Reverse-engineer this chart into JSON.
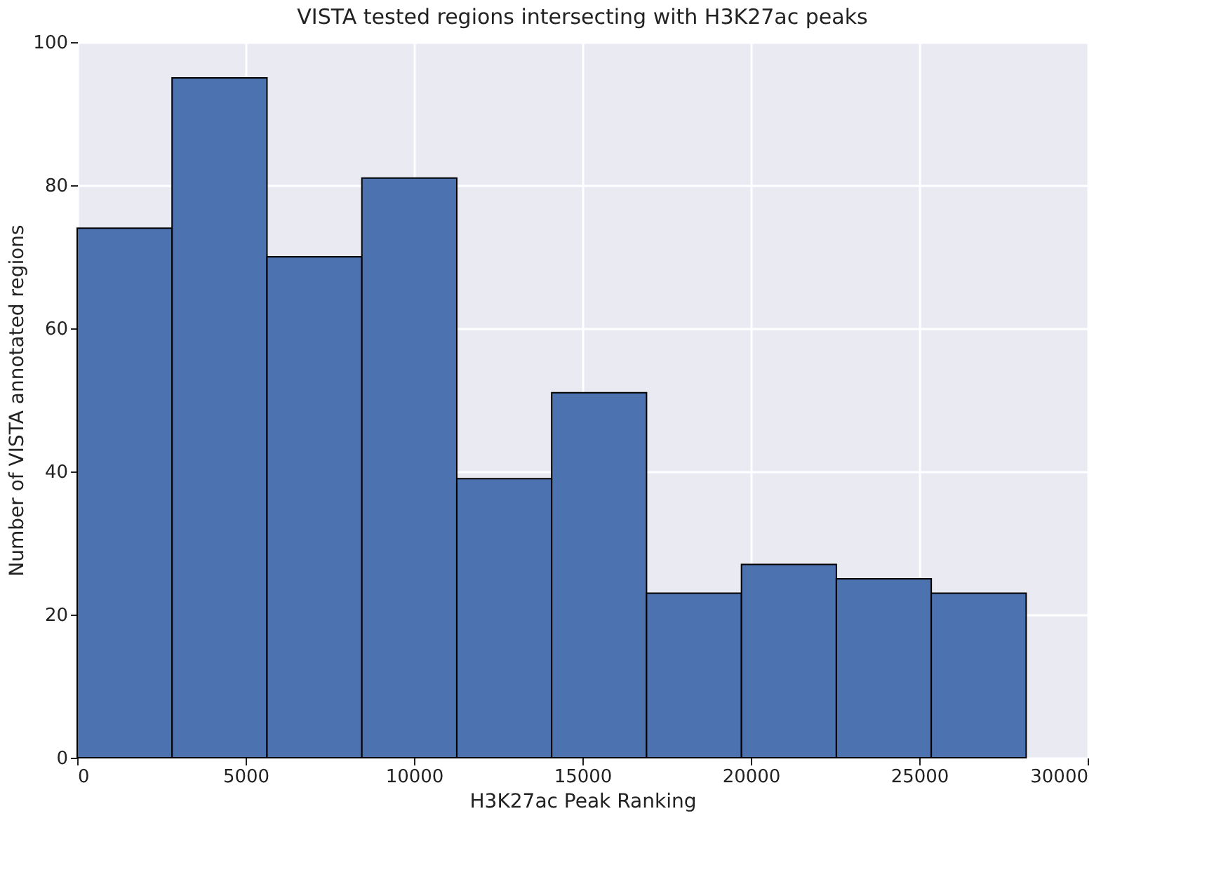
{
  "chart_data": {
    "type": "histogram",
    "title": "VISTA tested regions intersecting with H3K27ac peaks",
    "xlabel": "H3K27ac Peak Ranking",
    "ylabel": "Number of VISTA annotated regions",
    "bins": [
      0,
      2817,
      5635,
      8452,
      11270,
      14087,
      16904,
      19722,
      22539,
      25357,
      28174
    ],
    "values": [
      74,
      95,
      70,
      81,
      39,
      51,
      23,
      27,
      25,
      23
    ],
    "color": "#4c72b0",
    "xlim": [
      0,
      30000
    ],
    "xticks": [
      0,
      5000,
      10000,
      15000,
      20000,
      25000,
      30000
    ],
    "ylim": [
      0,
      100
    ],
    "yticks": [
      0,
      20,
      40,
      60,
      80,
      100
    ],
    "grid": true
  }
}
